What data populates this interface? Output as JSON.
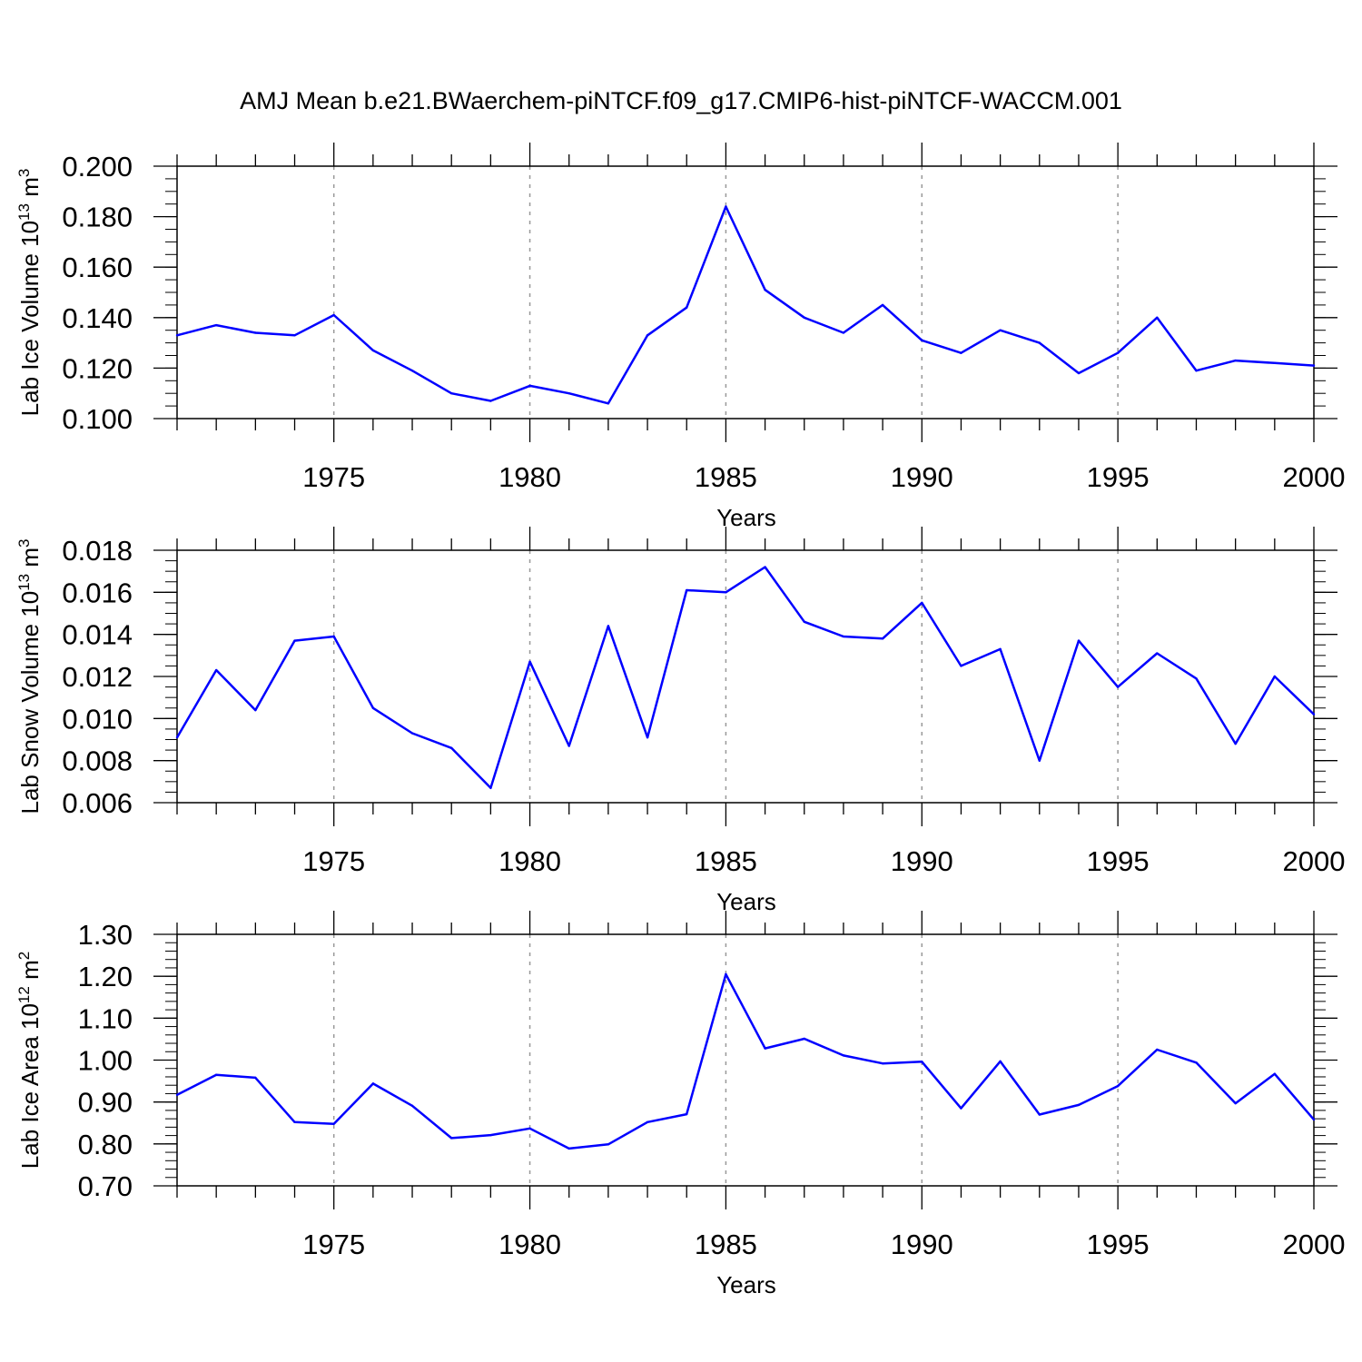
{
  "title": "AMJ Mean b.e21.BWaerchem-piNTCF.f09_g17.CMIP6-hist-piNTCF-WACCM.001",
  "colors": {
    "line": "#0000ff",
    "axis": "#000000",
    "grid": "#999999"
  },
  "chart_data": [
    {
      "type": "line",
      "name": "lab-ice-volume",
      "ylabel": "Lab Ice Volume",
      "ylabel_unit_base": "10",
      "ylabel_unit_exp": "13",
      "ylabel_unit_tail": " m",
      "ylabel_unit_tail_exp": "3",
      "xlabel": "Years",
      "xlim": [
        1971,
        2000
      ],
      "ylim": [
        0.1,
        0.2
      ],
      "yticks": [
        0.1,
        0.12,
        0.14,
        0.16,
        0.18,
        0.2
      ],
      "ytick_labels": [
        "0.100",
        "0.120",
        "0.140",
        "0.160",
        "0.180",
        "0.200"
      ],
      "yminor_step": 0.005,
      "xticks": [
        1975,
        1980,
        1985,
        1990,
        1995,
        2000
      ],
      "xtick_labels": [
        "1975",
        "1980",
        "1985",
        "1990",
        "1995",
        "2000"
      ],
      "grid": "dashed vertical at major x ticks",
      "x": [
        1971,
        1972,
        1973,
        1974,
        1975,
        1976,
        1977,
        1978,
        1979,
        1980,
        1981,
        1982,
        1983,
        1984,
        1985,
        1986,
        1987,
        1988,
        1989,
        1990,
        1991,
        1992,
        1993,
        1994,
        1995,
        1996,
        1997,
        1998,
        1999,
        2000
      ],
      "values": [
        0.133,
        0.137,
        0.134,
        0.133,
        0.141,
        0.127,
        0.119,
        0.11,
        0.107,
        0.113,
        0.11,
        0.106,
        0.133,
        0.144,
        0.184,
        0.151,
        0.14,
        0.134,
        0.145,
        0.131,
        0.126,
        0.135,
        0.13,
        0.118,
        0.126,
        0.14,
        0.119,
        0.123,
        0.122,
        0.121
      ]
    },
    {
      "type": "line",
      "name": "lab-snow-volume",
      "ylabel": "Lab Snow Volume",
      "ylabel_unit_base": "10",
      "ylabel_unit_exp": "13",
      "ylabel_unit_tail": " m",
      "ylabel_unit_tail_exp": "3",
      "xlabel": "Years",
      "xlim": [
        1971,
        2000
      ],
      "ylim": [
        0.006,
        0.018
      ],
      "yticks": [
        0.006,
        0.008,
        0.01,
        0.012,
        0.014,
        0.016,
        0.018
      ],
      "ytick_labels": [
        "0.006",
        "0.008",
        "0.010",
        "0.012",
        "0.014",
        "0.016",
        "0.018"
      ],
      "yminor_step": 0.0005,
      "xticks": [
        1975,
        1980,
        1985,
        1990,
        1995,
        2000
      ],
      "xtick_labels": [
        "1975",
        "1980",
        "1985",
        "1990",
        "1995",
        "2000"
      ],
      "grid": "dashed vertical at major x ticks",
      "x": [
        1971,
        1972,
        1973,
        1974,
        1975,
        1976,
        1977,
        1978,
        1979,
        1980,
        1981,
        1982,
        1983,
        1984,
        1985,
        1986,
        1987,
        1988,
        1989,
        1990,
        1991,
        1992,
        1993,
        1994,
        1995,
        1996,
        1997,
        1998,
        1999,
        2000
      ],
      "values": [
        0.0091,
        0.0123,
        0.0104,
        0.0137,
        0.0139,
        0.0105,
        0.0093,
        0.0086,
        0.0067,
        0.0127,
        0.0087,
        0.0144,
        0.0091,
        0.0161,
        0.016,
        0.0172,
        0.0146,
        0.0139,
        0.0138,
        0.0155,
        0.0125,
        0.0133,
        0.008,
        0.0137,
        0.0115,
        0.0131,
        0.0119,
        0.0088,
        0.012,
        0.0102
      ]
    },
    {
      "type": "line",
      "name": "lab-ice-area",
      "ylabel": "Lab Ice Area",
      "ylabel_unit_base": "10",
      "ylabel_unit_exp": "12",
      "ylabel_unit_tail": " m",
      "ylabel_unit_tail_exp": "2",
      "xlabel": "Years",
      "xlim": [
        1971,
        2000
      ],
      "ylim": [
        0.7,
        1.3
      ],
      "yticks": [
        0.7,
        0.8,
        0.9,
        1.0,
        1.1,
        1.2,
        1.3
      ],
      "ytick_labels": [
        "0.70",
        "0.80",
        "0.90",
        "1.00",
        "1.10",
        "1.20",
        "1.30"
      ],
      "yminor_step": 0.02,
      "xticks": [
        1975,
        1980,
        1985,
        1990,
        1995,
        2000
      ],
      "xtick_labels": [
        "1975",
        "1980",
        "1985",
        "1990",
        "1995",
        "2000"
      ],
      "grid": "dashed vertical at major x ticks",
      "x": [
        1971,
        1972,
        1973,
        1974,
        1975,
        1976,
        1977,
        1978,
        1979,
        1980,
        1981,
        1982,
        1983,
        1984,
        1985,
        1986,
        1987,
        1988,
        1989,
        1990,
        1991,
        1992,
        1993,
        1994,
        1995,
        1996,
        1997,
        1998,
        1999,
        2000
      ],
      "values": [
        0.917,
        0.965,
        0.958,
        0.852,
        0.848,
        0.944,
        0.891,
        0.814,
        0.821,
        0.837,
        0.789,
        0.799,
        0.852,
        0.871,
        1.205,
        1.028,
        1.051,
        1.011,
        0.992,
        0.996,
        0.885,
        0.997,
        0.87,
        0.893,
        0.938,
        1.025,
        0.994,
        0.897,
        0.967,
        0.858
      ]
    }
  ]
}
